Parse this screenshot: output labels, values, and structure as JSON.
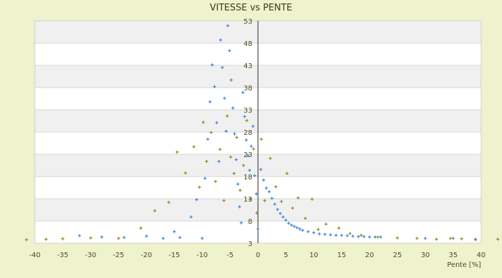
{
  "chart_data": {
    "type": "scatter",
    "title": "VITESSE vs PENTE",
    "xlabel": "Pente [%]",
    "ylabel": "",
    "xlim": [
      -40,
      40
    ],
    "ylim": [
      3,
      53
    ],
    "xticks": [
      -40,
      -35,
      -30,
      -25,
      -20,
      -15,
      -10,
      -5,
      0,
      5,
      10,
      15,
      20,
      25,
      30,
      35,
      40
    ],
    "yticks": [
      3,
      8,
      13,
      18,
      23,
      28,
      33,
      38,
      43,
      48,
      53
    ],
    "xtick_labels": [
      "-40",
      "-35",
      "-30",
      "-25",
      "-20",
      "-15",
      "-10",
      "-5",
      "0",
      "5",
      "10",
      "15",
      "20",
      "25",
      "30",
      "35",
      "40"
    ],
    "ytick_labels": [
      "3",
      "8",
      "13",
      "18",
      "23",
      "28",
      "33",
      "38",
      "43",
      "48",
      "53"
    ],
    "grid": true,
    "legend": "none",
    "series": [
      {
        "color": "#3a86d6",
        "marker": "+",
        "points": [
          [
            -32,
            4.7
          ],
          [
            -28,
            4.4
          ],
          [
            -24,
            4.3
          ],
          [
            -20,
            4.6
          ],
          [
            -17,
            4.1
          ],
          [
            -15,
            5.6
          ],
          [
            -14,
            4.3
          ],
          [
            -12,
            8.9
          ],
          [
            -11,
            12.8
          ],
          [
            -10,
            4.1
          ],
          [
            -9.5,
            17.6
          ],
          [
            -9,
            26.4
          ],
          [
            -8.6,
            34.8
          ],
          [
            -8.2,
            43.1
          ],
          [
            -7.8,
            38.2
          ],
          [
            -7.4,
            30.1
          ],
          [
            -7,
            21.4
          ],
          [
            -6.7,
            48.7
          ],
          [
            -6.4,
            42.5
          ],
          [
            -6,
            35.6
          ],
          [
            -5.7,
            28.2
          ],
          [
            -5.4,
            51.9
          ],
          [
            -5.1,
            46.3
          ],
          [
            -4.8,
            39.7
          ],
          [
            -4.5,
            33.4
          ],
          [
            -4.2,
            27.6
          ],
          [
            -3.9,
            21.8
          ],
          [
            -3.6,
            16.3
          ],
          [
            -3.3,
            11.2
          ],
          [
            -3,
            7.6
          ],
          [
            -2.7,
            36.9
          ],
          [
            -2.4,
            31.5
          ],
          [
            -2.1,
            26.2
          ],
          [
            -1.8,
            22.7
          ],
          [
            -1.5,
            19.4
          ],
          [
            -1.2,
            24.8
          ],
          [
            -0.9,
            29.3
          ],
          [
            -0.6,
            18.2
          ],
          [
            -0.3,
            14.1
          ],
          [
            0,
            6.2
          ],
          [
            0.5,
            19.6
          ],
          [
            1,
            17.2
          ],
          [
            1.5,
            15.4
          ],
          [
            2,
            14.6
          ],
          [
            2.5,
            13.1
          ],
          [
            3,
            11.8
          ],
          [
            3.5,
            10.6
          ],
          [
            4,
            9.7
          ],
          [
            4.5,
            8.9
          ],
          [
            5,
            8.2
          ],
          [
            5.5,
            7.5
          ],
          [
            6,
            7.1
          ],
          [
            6.5,
            6.8
          ],
          [
            7,
            6.5
          ],
          [
            7.5,
            6.2
          ],
          [
            8,
            5.9
          ],
          [
            9,
            5.6
          ],
          [
            10,
            5.4
          ],
          [
            11,
            5.1
          ],
          [
            12,
            5.0
          ],
          [
            13,
            4.9
          ],
          [
            14,
            4.8
          ],
          [
            15,
            4.8
          ],
          [
            16,
            4.7
          ],
          [
            17,
            4.6
          ],
          [
            18,
            4.5
          ],
          [
            19,
            4.5
          ],
          [
            20,
            4.4
          ],
          [
            21,
            4.4
          ],
          [
            22,
            4.4
          ],
          [
            30,
            4.1
          ],
          [
            35,
            4.1
          ],
          [
            39,
            3.9
          ]
        ]
      },
      {
        "color": "#8c8a1a",
        "marker": "+",
        "points": [
          [
            -41.5,
            3.8
          ],
          [
            -38,
            3.9
          ],
          [
            -35,
            4.0
          ],
          [
            -30,
            4.2
          ],
          [
            -25,
            4.1
          ],
          [
            -21,
            6.4
          ],
          [
            -18.5,
            10.3
          ],
          [
            -16,
            12.2
          ],
          [
            -14.5,
            23.5
          ],
          [
            -13,
            18.8
          ],
          [
            -11.5,
            24.7
          ],
          [
            -10.5,
            15.6
          ],
          [
            -9.8,
            30.2
          ],
          [
            -9.2,
            21.4
          ],
          [
            -8.4,
            27.9
          ],
          [
            -7.6,
            16.9
          ],
          [
            -6.8,
            24.1
          ],
          [
            -6.1,
            12.6
          ],
          [
            -5.5,
            31.6
          ],
          [
            -4.9,
            22.4
          ],
          [
            -4.3,
            18.7
          ],
          [
            -3.8,
            26.8
          ],
          [
            -3.2,
            14.9
          ],
          [
            -2.6,
            20.5
          ],
          [
            -2,
            30.6
          ],
          [
            -1.4,
            12.9
          ],
          [
            -0.8,
            24.2
          ],
          [
            -0.2,
            9.8
          ],
          [
            0.6,
            26.4
          ],
          [
            1.2,
            12.6
          ],
          [
            2.2,
            22.1
          ],
          [
            3.2,
            15.7
          ],
          [
            4.2,
            12.4
          ],
          [
            5.2,
            18.7
          ],
          [
            6.2,
            10.9
          ],
          [
            7.2,
            13.2
          ],
          [
            8.5,
            8.6
          ],
          [
            9.7,
            12.9
          ],
          [
            10.8,
            6.1
          ],
          [
            12.2,
            7.3
          ],
          [
            14.5,
            6.4
          ],
          [
            16.5,
            5.2
          ],
          [
            18.5,
            4.8
          ],
          [
            21.5,
            4.4
          ],
          [
            25,
            4.2
          ],
          [
            28.5,
            4.1
          ],
          [
            32,
            3.9
          ],
          [
            34.5,
            4.1
          ],
          [
            36.5,
            4.0
          ],
          [
            39,
            3.8
          ],
          [
            43,
            3.9
          ]
        ]
      }
    ]
  }
}
